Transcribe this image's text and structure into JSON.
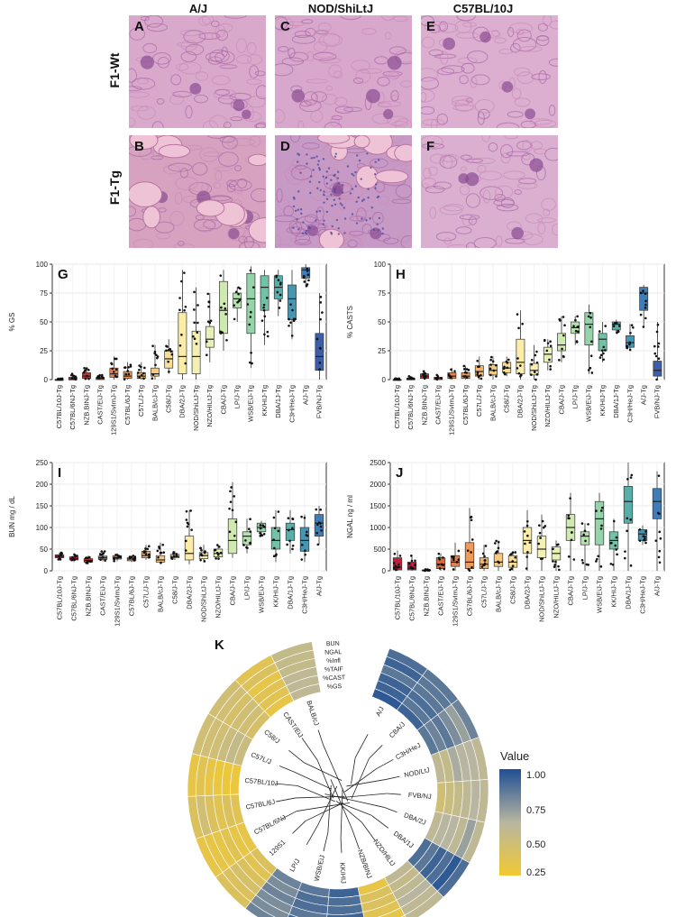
{
  "histology": {
    "columns": [
      "A/J",
      "NOD/ShiLtJ",
      "C57BL/10J"
    ],
    "rows": [
      "F1-Wt",
      "F1-Tg"
    ],
    "panels": [
      {
        "letter": "A",
        "tone": "#d9a9cc"
      },
      {
        "letter": "C",
        "tone": "#d8a7cc"
      },
      {
        "letter": "E",
        "tone": "#dcaed0"
      },
      {
        "letter": "B",
        "tone": "#d6a2c0"
      },
      {
        "letter": "D",
        "tone": "#c79ac5"
      },
      {
        "letter": "F",
        "tone": "#dbafd0"
      }
    ]
  },
  "chart_data": [
    {
      "panel": "G",
      "type": "box",
      "ylabel": "% GS",
      "ylim": [
        0,
        100
      ],
      "yticks": [
        0,
        25,
        50,
        75,
        100
      ],
      "categories": [
        "C57BL/10J-Tg",
        "C57BL/6NJ-Tg",
        "NZB.BINJ-Tg",
        "CAST/EiJ-Tg",
        "129S1/SvImJ-Tg",
        "C57BL/6J-Tg",
        "C57L/J-Tg",
        "BALB/cJ-Tg",
        "C58/J-Tg",
        "DBA/2J-Tg",
        "NOD/ShiLtJ-Tg",
        "NZO/HILtJ-Tg",
        "CBA/J-Tg",
        "LP/J-Tg",
        "WSB/EiJ-Tg",
        "KK/HIJ-Tg",
        "DBA/1J-Tg",
        "C3H/HeJ-Tg",
        "A/J-Tg",
        "FVB/NJ-Tg"
      ],
      "boxes": [
        [
          0,
          0,
          0,
          0,
          1
        ],
        [
          0,
          0,
          0,
          2,
          5
        ],
        [
          0,
          1,
          3,
          6,
          10
        ],
        [
          0,
          0,
          1,
          2,
          4
        ],
        [
          0,
          2,
          5,
          10,
          20
        ],
        [
          0,
          1,
          3,
          7,
          15
        ],
        [
          0,
          1,
          3,
          6,
          15
        ],
        [
          0,
          3,
          5,
          10,
          30
        ],
        [
          5,
          10,
          18,
          25,
          35
        ],
        [
          0,
          5,
          20,
          58,
          95
        ],
        [
          0,
          5,
          20,
          42,
          80
        ],
        [
          15,
          28,
          35,
          46,
          75
        ],
        [
          25,
          40,
          60,
          85,
          95
        ],
        [
          50,
          62,
          70,
          75,
          80
        ],
        [
          10,
          40,
          70,
          92,
          98
        ],
        [
          30,
          60,
          80,
          90,
          95
        ],
        [
          55,
          70,
          80,
          90,
          95
        ],
        [
          35,
          52,
          70,
          82,
          95
        ],
        [
          80,
          88,
          95,
          97,
          100
        ],
        [
          0,
          8,
          20,
          40,
          75
        ]
      ],
      "fills": [
        "#c41e3a",
        "#b61e43",
        "#b93a2a",
        "#d86a3c",
        "#e8824b",
        "#f09a5a",
        "#f3b46e",
        "#f6c97f",
        "#f8dd95",
        "#fbeca8",
        "#f4f0b2",
        "#e7f0b6",
        "#cfe9b0",
        "#b4e1ac",
        "#95d3aa",
        "#72c2a8",
        "#57aeab",
        "#4596b2",
        "#3e7db8",
        "#3c5ea8"
      ]
    },
    {
      "panel": "H",
      "type": "box",
      "ylabel": "% CASTS",
      "ylim": [
        0,
        100
      ],
      "yticks": [
        0,
        25,
        50,
        75,
        100
      ],
      "categories": [
        "C57BL/10J-Tg",
        "C57BL/6NJ-Tg",
        "NZB.BINJ-Tg",
        "CAST/EiJ-Tg",
        "129S1/SvImJ-Tg",
        "C57BL/6J-Tg",
        "C57L/J-Tg",
        "BALB/cJ-Tg",
        "C58/J-Tg",
        "DBA/2J-Tg",
        "NOD/ShiLtJ-Tg",
        "NZO/HILtJ-Tg",
        "CBA/J-Tg",
        "LP/J-Tg",
        "WSB/EiJ-Tg",
        "KK/HIJ-Tg",
        "DBA/1J-Tg",
        "C3H/HeJ-Tg",
        "A/J-Tg",
        "FVB/NJ-Tg"
      ],
      "boxes": [
        [
          0,
          0,
          0,
          0,
          1
        ],
        [
          0,
          0,
          0,
          1,
          3
        ],
        [
          0,
          1,
          3,
          5,
          8
        ],
        [
          0,
          0,
          1,
          2,
          4
        ],
        [
          0,
          1,
          3,
          6,
          10
        ],
        [
          0,
          1,
          3,
          6,
          12
        ],
        [
          0,
          3,
          7,
          12,
          20
        ],
        [
          0,
          4,
          8,
          13,
          20
        ],
        [
          3,
          6,
          10,
          15,
          20
        ],
        [
          0,
          5,
          15,
          35,
          60
        ],
        [
          0,
          4,
          8,
          14,
          30
        ],
        [
          8,
          15,
          22,
          28,
          35
        ],
        [
          15,
          25,
          30,
          40,
          55
        ],
        [
          30,
          40,
          45,
          50,
          55
        ],
        [
          5,
          30,
          48,
          58,
          65
        ],
        [
          15,
          25,
          35,
          40,
          50
        ],
        [
          40,
          43,
          48,
          50,
          52
        ],
        [
          25,
          28,
          32,
          38,
          48
        ],
        [
          45,
          60,
          75,
          80,
          82
        ],
        [
          0,
          3,
          8,
          16,
          50
        ]
      ],
      "fills": [
        "#c41e3a",
        "#b61e43",
        "#b93a2a",
        "#d86a3c",
        "#e8824b",
        "#f09a5a",
        "#f3b46e",
        "#f6c97f",
        "#f8dd95",
        "#fbeca8",
        "#f4f0b2",
        "#e7f0b6",
        "#cfe9b0",
        "#b4e1ac",
        "#95d3aa",
        "#72c2a8",
        "#57aeab",
        "#4596b2",
        "#3e7db8",
        "#3c5ea8"
      ]
    },
    {
      "panel": "I",
      "type": "box",
      "ylabel": "BUN mg / dL",
      "ylim": [
        0,
        250
      ],
      "yticks": [
        0,
        50,
        100,
        150,
        200,
        250
      ],
      "categories": [
        "C57BL/10J-Tg",
        "C57BL/6NJ-Tg",
        "NZB.BINJ-Tg",
        "CAST/EiJ-Tg",
        "129S1/SvImJ-Tg",
        "C57BL/6J-Tg",
        "C57L/J-Tg",
        "BALB/cJ-Tg",
        "C58/J-Tg",
        "DBA/2J-Tg",
        "NOD/ShiLtJ-Tg",
        "NZO/HILtJ-Tg",
        "CBA/J-Tg",
        "LP/J-Tg",
        "WSB/EiJ-Tg",
        "KK/HIJ-Tg",
        "DBA/1J-Tg",
        "C3H/HeJ-Tg",
        "A/J-Tg"
      ],
      "boxes": [
        [
          25,
          30,
          33,
          37,
          42
        ],
        [
          20,
          25,
          28,
          32,
          38
        ],
        [
          15,
          20,
          24,
          28,
          35
        ],
        [
          22,
          26,
          30,
          34,
          45
        ],
        [
          22,
          27,
          30,
          35,
          40
        ],
        [
          20,
          23,
          27,
          30,
          35
        ],
        [
          25,
          30,
          35,
          45,
          60
        ],
        [
          15,
          20,
          25,
          35,
          65
        ],
        [
          25,
          30,
          33,
          38,
          45
        ],
        [
          15,
          25,
          40,
          80,
          140
        ],
        [
          20,
          28,
          35,
          42,
          60
        ],
        [
          25,
          32,
          40,
          50,
          60
        ],
        [
          30,
          40,
          70,
          120,
          205
        ],
        [
          40,
          60,
          80,
          90,
          120
        ],
        [
          80,
          90,
          100,
          110,
          115
        ],
        [
          20,
          50,
          70,
          100,
          140
        ],
        [
          40,
          70,
          95,
          110,
          140
        ],
        [
          20,
          45,
          70,
          100,
          130
        ],
        [
          60,
          80,
          110,
          130,
          150
        ]
      ],
      "fills": [
        "#c41e3a",
        "#b61e43",
        "#b93a2a",
        "#d86a3c",
        "#e8824b",
        "#f09a5a",
        "#f3b46e",
        "#f6c97f",
        "#f8dd95",
        "#fbeca8",
        "#f4f0b2",
        "#e7f0b6",
        "#cfe9b0",
        "#b4e1ac",
        "#95d3aa",
        "#72c2a8",
        "#57aeab",
        "#4596b2",
        "#3e7db8"
      ]
    },
    {
      "panel": "J",
      "type": "box",
      "ylabel": "NGAL ng / ml",
      "ylim": [
        0,
        2500
      ],
      "yticks": [
        0,
        500,
        1000,
        1500,
        2000,
        2500
      ],
      "categories": [
        "C57BL/10J-Tg",
        "C57BL/6NJ-Tg",
        "NZB.BINJ-Tg",
        "CAST/EiJ-Tg",
        "129S1/SvImJ-Tg",
        "C57BL/6J-Tg",
        "C57L/J-Tg",
        "BALB/cJ-Tg",
        "C58/J-Tg",
        "DBA/2J-Tg",
        "NOD/ShiLtJ-Tg",
        "NZO/HILtJ-Tg",
        "CBA/J-Tg",
        "LP/J-Tg",
        "WSB/EiJ-Tg",
        "KK/HIJ-Tg",
        "DBA/1J-Tg",
        "C3H/HeJ-Tg",
        "A/J-Tg"
      ],
      "boxes": [
        [
          0,
          20,
          80,
          300,
          470
        ],
        [
          0,
          20,
          60,
          200,
          350
        ],
        [
          0,
          0,
          10,
          20,
          40
        ],
        [
          0,
          50,
          150,
          300,
          400
        ],
        [
          0,
          100,
          200,
          350,
          650
        ],
        [
          0,
          50,
          200,
          650,
          1450
        ],
        [
          0,
          50,
          150,
          300,
          600
        ],
        [
          0,
          100,
          200,
          400,
          700
        ],
        [
          0,
          80,
          200,
          350,
          450
        ],
        [
          0,
          400,
          700,
          1000,
          1400
        ],
        [
          0,
          300,
          500,
          800,
          1300
        ],
        [
          0,
          250,
          400,
          550,
          700
        ],
        [
          0,
          700,
          1000,
          1300,
          1800
        ],
        [
          0,
          600,
          800,
          900,
          1100
        ],
        [
          0,
          600,
          1200,
          1600,
          1800
        ],
        [
          0,
          500,
          700,
          900,
          1200
        ],
        [
          0,
          1100,
          1600,
          1950,
          2500
        ],
        [
          600,
          700,
          850,
          950,
          1050
        ],
        [
          0,
          1200,
          1600,
          1900,
          2300
        ]
      ],
      "fills": [
        "#c41e3a",
        "#b61e43",
        "#b93a2a",
        "#d86a3c",
        "#e8824b",
        "#f09a5a",
        "#f3b46e",
        "#f6c97f",
        "#f8dd95",
        "#fbeca8",
        "#f4f0b2",
        "#e7f0b6",
        "#cfe9b0",
        "#b4e1ac",
        "#95d3aa",
        "#72c2a8",
        "#57aeab",
        "#4596b2",
        "#3e7db8"
      ]
    },
    {
      "panel": "K",
      "type": "heatmap",
      "title": "Value",
      "legend": {
        "ticks": [
          "1.00",
          "0.75",
          "0.50",
          "0.25"
        ],
        "low_color": "#f1c932",
        "mid_color": "#b8b6a0",
        "high_color": "#1f4f93"
      },
      "ring_labels": [
        "%GS",
        "%CAST",
        "%TAIF",
        "%Infl",
        "NGAL",
        "BUN"
      ],
      "strains": [
        "A/J",
        "CBA/J",
        "C3H/HeJ",
        "NOD/LtJ",
        "FVB/NJ",
        "DBA/2J",
        "DBA/1J",
        "NZO/HlLtJ",
        "NZB/BINJ",
        "KK/HIJ",
        "WSB/EiJ",
        "LP/J",
        "129S1",
        "C57BL/6NJ",
        "C57BL/6J",
        "C57BL/10J",
        "C57L/J",
        "C58/J",
        "CAST/EiJ",
        "BALB/cJ"
      ],
      "values": [
        [
          0.95,
          0.9,
          0.9,
          0.8,
          0.9,
          0.85
        ],
        [
          0.9,
          0.8,
          0.85,
          0.8,
          0.8,
          0.8
        ],
        [
          0.8,
          0.75,
          0.8,
          0.7,
          0.6,
          0.75
        ],
        [
          0.45,
          0.4,
          0.55,
          0.5,
          0.5,
          0.45
        ],
        [
          0.3,
          0.35,
          0.4,
          0.45,
          0.5,
          0.45
        ],
        [
          0.45,
          0.5,
          0.5,
          0.45,
          0.6,
          0.45
        ],
        [
          0.85,
          0.8,
          0.9,
          0.85,
          0.95,
          0.85
        ],
        [
          0.45,
          0.4,
          0.45,
          0.5,
          0.45,
          0.45
        ],
        [
          0.1,
          0.2,
          0.2,
          0.15,
          0.1,
          0.15
        ],
        [
          0.9,
          0.85,
          0.85,
          0.9,
          0.8,
          0.8
        ],
        [
          0.8,
          0.85,
          0.85,
          0.8,
          0.9,
          0.85
        ],
        [
          0.75,
          0.7,
          0.75,
          0.7,
          0.7,
          0.75
        ],
        [
          0.2,
          0.15,
          0.2,
          0.25,
          0.2,
          0.2
        ],
        [
          0.1,
          0.1,
          0.15,
          0.1,
          0.1,
          0.1
        ],
        [
          0.15,
          0.2,
          0.15,
          0.2,
          0.3,
          0.2
        ],
        [
          0.05,
          0.05,
          0.05,
          0.1,
          0.15,
          0.1
        ],
        [
          0.35,
          0.4,
          0.35,
          0.3,
          0.3,
          0.3
        ],
        [
          0.25,
          0.3,
          0.3,
          0.25,
          0.3,
          0.3
        ],
        [
          0.1,
          0.15,
          0.15,
          0.1,
          0.2,
          0.15
        ],
        [
          0.45,
          0.45,
          0.45,
          0.4,
          0.4,
          0.4
        ]
      ]
    }
  ]
}
